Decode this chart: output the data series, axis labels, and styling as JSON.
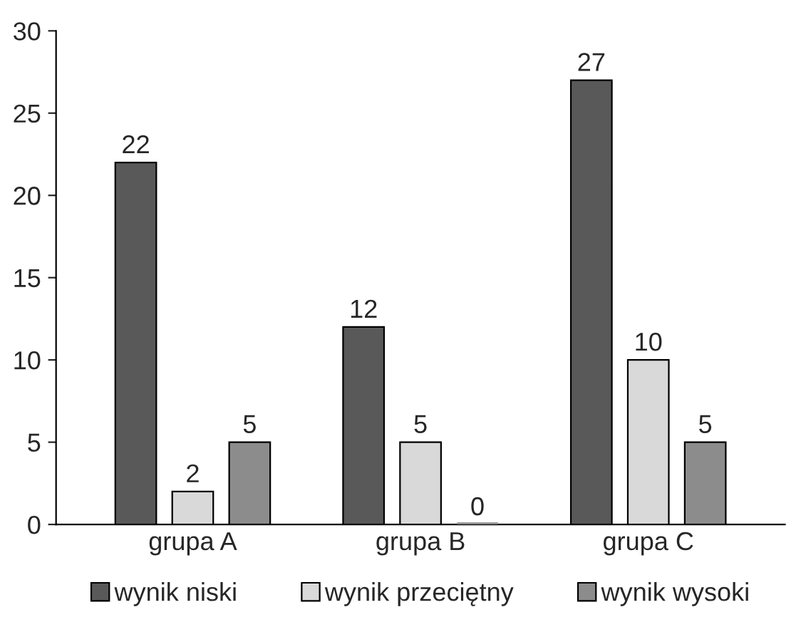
{
  "chart_data": {
    "type": "bar",
    "categories": [
      "grupa A",
      "grupa B",
      "grupa C"
    ],
    "series": [
      {
        "name": "wynik niski",
        "color": "#595959",
        "values": [
          22,
          12,
          27
        ]
      },
      {
        "name": "wynik przeciętny",
        "color": "#d9d9d9",
        "values": [
          2,
          5,
          10
        ]
      },
      {
        "name": "wynik wysoki",
        "color": "#8c8c8c",
        "values": [
          5,
          0,
          5
        ]
      }
    ],
    "ylim": [
      0,
      30
    ],
    "yticks": [
      0,
      5,
      10,
      15,
      20,
      25,
      30
    ],
    "data_labels": true,
    "grid": false,
    "legend": "bottom"
  }
}
